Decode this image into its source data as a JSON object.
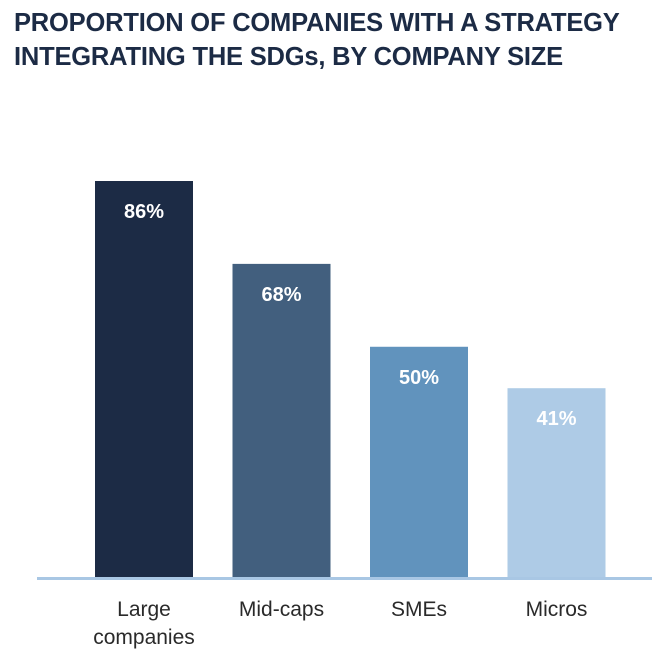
{
  "title_lines": [
    "PROPORTION OF COMPANIES WITH A STRATEGY",
    "INTEGRATING THE SDGs, BY COMPANY SIZE"
  ],
  "chart_data": {
    "type": "bar",
    "title": "PROPORTION OF COMPANIES WITH A STRATEGY INTEGRATING THE SDGs, BY COMPANY SIZE",
    "categories": [
      "Large companies",
      "Mid-caps",
      "SMEs",
      "Micros"
    ],
    "category_label_lines": [
      [
        "Large",
        "companies"
      ],
      [
        "Mid-caps"
      ],
      [
        "SMEs"
      ],
      [
        "Micros"
      ]
    ],
    "values": [
      86,
      68,
      50,
      41
    ],
    "data_labels": [
      "86%",
      "68%",
      "50%",
      "41%"
    ],
    "bar_colors": [
      "#1c2b45",
      "#425f7e",
      "#6193bd",
      "#aecbe6"
    ],
    "axis_color": "#a9c7e4",
    "xlabel": "",
    "ylabel": "",
    "ylim": [
      0,
      86
    ],
    "grid": false,
    "legend": "none"
  }
}
